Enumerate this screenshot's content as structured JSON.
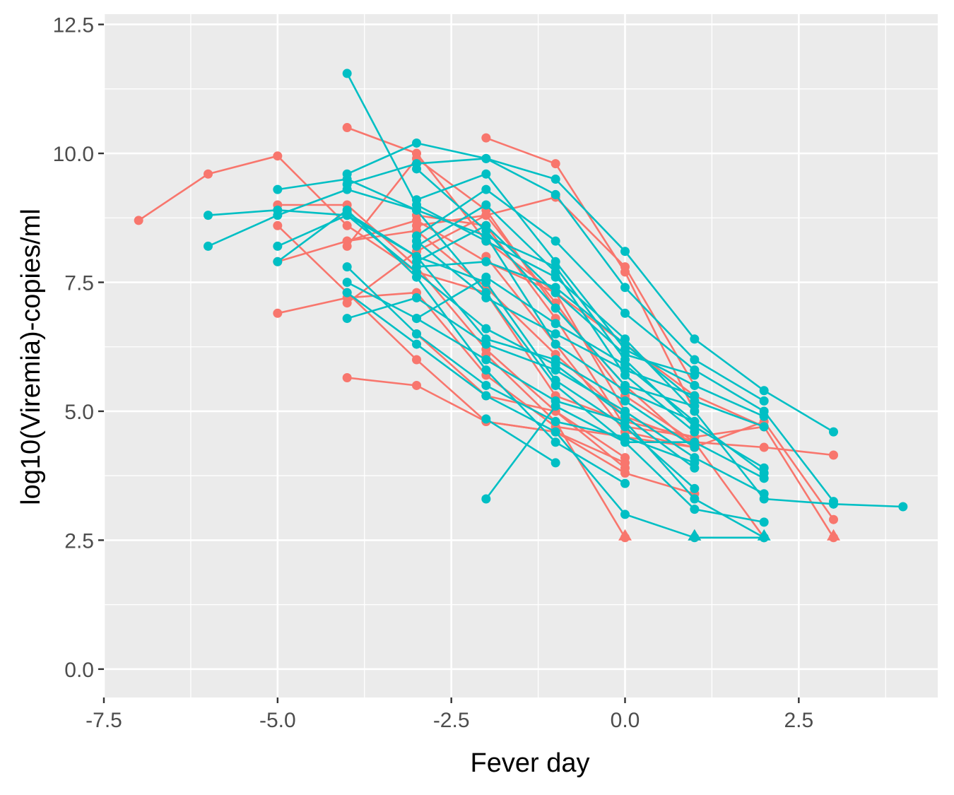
{
  "chart_data": {
    "type": "line",
    "title": "",
    "xlabel": "Fever day",
    "ylabel": "log10(Viremia)-copies/ml",
    "xlim": [
      -7.5,
      4.5
    ],
    "ylim": [
      -0.55,
      12.7
    ],
    "x_ticks": [
      -7.5,
      -5.0,
      -2.5,
      0.0,
      2.5
    ],
    "x_tick_labels": [
      "-7.5",
      "-5.0",
      "-2.5",
      "0.0",
      "2.5"
    ],
    "y_ticks": [
      0.0,
      2.5,
      5.0,
      7.5,
      10.0,
      12.5
    ],
    "y_tick_labels": [
      "0.0",
      "2.5",
      "5.0",
      "7.5",
      "10.0",
      "12.5"
    ],
    "grid": true,
    "legend": "none",
    "colors": {
      "red": "#F8766D",
      "cyan": "#00BFC4"
    },
    "series": [
      {
        "color": "red",
        "points": [
          [
            -7,
            8.7
          ],
          [
            -6,
            9.6
          ],
          [
            -5,
            9.95
          ],
          [
            -4,
            8.6
          ],
          [
            -3,
            7.7
          ],
          [
            -2,
            7.3
          ],
          [
            -1,
            5.3
          ],
          [
            0,
            4.8
          ],
          [
            1,
            4.5
          ]
        ]
      },
      {
        "color": "red",
        "points": [
          [
            -5,
            9.0
          ],
          [
            -4,
            9.0
          ],
          [
            -3,
            7.8
          ],
          [
            -2,
            6.2
          ],
          [
            -1,
            5.0
          ],
          [
            0,
            3.9
          ]
        ]
      },
      {
        "color": "red",
        "points": [
          [
            -5,
            8.6
          ],
          [
            -4,
            7.3
          ],
          [
            -3,
            6.0
          ],
          [
            -2,
            4.8
          ],
          [
            -1,
            4.6
          ],
          [
            0,
            3.8
          ],
          [
            1,
            3.4
          ]
        ]
      },
      {
        "color": "red",
        "points": [
          [
            -5,
            7.9
          ],
          [
            -4,
            8.3
          ],
          [
            -3,
            8.5
          ],
          [
            -2,
            7.4
          ],
          [
            -1,
            6.1
          ],
          [
            0,
            4.9
          ],
          [
            1,
            4.4
          ],
          [
            2,
            4.3
          ],
          [
            3,
            4.15
          ]
        ]
      },
      {
        "color": "red",
        "points": [
          [
            -5,
            6.9
          ],
          [
            -4,
            7.2
          ],
          [
            -3,
            7.3
          ],
          [
            -2,
            5.7
          ],
          [
            -1,
            4.7
          ],
          [
            0,
            4.5
          ],
          [
            1,
            4.3
          ],
          [
            2,
            4.8
          ],
          [
            3,
            2.9
          ]
        ]
      },
      {
        "color": "red",
        "points": [
          [
            -4,
            10.5
          ],
          [
            -3,
            10.0
          ],
          [
            -2,
            8.3
          ],
          [
            -1,
            7.3
          ],
          [
            0,
            6.3
          ],
          [
            1,
            5.3
          ],
          [
            2,
            4.7
          ],
          [
            3,
            2.55
          ]
        ]
      },
      {
        "color": "red",
        "points": [
          [
            -4,
            8.2
          ],
          [
            -3,
            9.9
          ],
          [
            -2,
            8.9
          ],
          [
            -1,
            7.0
          ],
          [
            0,
            5.5
          ],
          [
            1,
            4.3
          ]
        ]
      },
      {
        "color": "red",
        "points": [
          [
            -4,
            7.1
          ],
          [
            -3,
            8.1
          ],
          [
            -2,
            8.8
          ],
          [
            -1,
            7.1
          ],
          [
            0,
            5.3
          ],
          [
            1,
            4.4
          ],
          [
            2,
            2.55
          ]
        ]
      },
      {
        "color": "red",
        "points": [
          [
            -4,
            5.65
          ],
          [
            -3,
            5.5
          ],
          [
            -2,
            4.8
          ],
          [
            -1,
            4.6
          ],
          [
            0,
            4.0
          ]
        ]
      },
      {
        "color": "red",
        "points": [
          [
            -3,
            8.8
          ],
          [
            -2,
            8.6
          ],
          [
            -1,
            6.8
          ],
          [
            0,
            4.7
          ],
          [
            1,
            4.5
          ],
          [
            2,
            4.7
          ]
        ]
      },
      {
        "color": "red",
        "points": [
          [
            -3,
            6.5
          ],
          [
            -2,
            5.3
          ],
          [
            -1,
            5.0
          ],
          [
            0,
            4.1
          ]
        ]
      },
      {
        "color": "red",
        "points": [
          [
            -2,
            10.3
          ],
          [
            -1,
            9.8
          ],
          [
            0,
            7.7
          ],
          [
            1,
            5.0
          ]
        ]
      },
      {
        "color": "red",
        "points": [
          [
            -3,
            8.6
          ],
          [
            -2,
            8.8
          ],
          [
            -1,
            9.15
          ],
          [
            0,
            7.8
          ],
          [
            1,
            5.5
          ]
        ]
      },
      {
        "color": "red",
        "points": [
          [
            -2,
            8.0
          ],
          [
            -1,
            6.3
          ],
          [
            0,
            4.6
          ],
          [
            1,
            4.3
          ]
        ]
      },
      {
        "color": "red",
        "points": [
          [
            -2,
            6.1
          ],
          [
            -1,
            4.8
          ],
          [
            0,
            2.55
          ]
        ]
      },
      {
        "color": "red",
        "points": [
          [
            -4,
            8.3
          ],
          [
            -3,
            8.7
          ],
          [
            -2,
            7.9
          ],
          [
            -1,
            7.3
          ],
          [
            0,
            5.0
          ]
        ]
      },
      {
        "color": "cyan",
        "points": [
          [
            -6,
            8.8
          ],
          [
            -5,
            8.9
          ],
          [
            -4,
            8.8
          ],
          [
            -3,
            8.0
          ],
          [
            -2,
            7.5
          ],
          [
            -1,
            5.6
          ],
          [
            0,
            4.7
          ],
          [
            1,
            3.5
          ]
        ]
      },
      {
        "color": "cyan",
        "points": [
          [
            -6,
            8.2
          ],
          [
            -5,
            8.8
          ],
          [
            -4,
            9.3
          ],
          [
            -3,
            8.9
          ],
          [
            -2,
            8.4
          ],
          [
            -1,
            7.8
          ],
          [
            0,
            6.0
          ],
          [
            1,
            4.7
          ],
          [
            2,
            3.9
          ]
        ]
      },
      {
        "color": "cyan",
        "points": [
          [
            -5,
            9.3
          ],
          [
            -4,
            9.5
          ],
          [
            -3,
            8.9
          ],
          [
            -2,
            7.3
          ],
          [
            -1,
            5.5
          ],
          [
            0,
            4.4
          ],
          [
            1,
            3.1
          ],
          [
            2,
            2.85
          ]
        ]
      },
      {
        "color": "cyan",
        "points": [
          [
            -5,
            8.2
          ],
          [
            -4,
            8.8
          ],
          [
            -3,
            7.7
          ],
          [
            -2,
            6.6
          ],
          [
            -1,
            5.9
          ],
          [
            0,
            4.9
          ],
          [
            1,
            3.9
          ]
        ]
      },
      {
        "color": "cyan",
        "points": [
          [
            -5,
            7.9
          ],
          [
            -4,
            8.9
          ],
          [
            -3,
            7.6
          ],
          [
            -2,
            5.8
          ],
          [
            -1,
            4.4
          ],
          [
            0,
            3.6
          ]
        ]
      },
      {
        "color": "cyan",
        "points": [
          [
            -4,
            11.55
          ],
          [
            -3,
            9.0
          ],
          [
            -2,
            8.3
          ],
          [
            -1,
            7.6
          ],
          [
            0,
            6.4
          ],
          [
            1,
            5.0
          ],
          [
            2,
            3.3
          ],
          [
            3,
            3.2
          ],
          [
            4,
            3.15
          ]
        ]
      },
      {
        "color": "cyan",
        "points": [
          [
            -4,
            9.6
          ],
          [
            -3,
            10.2
          ],
          [
            -2,
            9.9
          ],
          [
            -1,
            9.5
          ],
          [
            0,
            8.1
          ],
          [
            1,
            6.4
          ],
          [
            2,
            5.4
          ],
          [
            3,
            4.6
          ]
        ]
      },
      {
        "color": "cyan",
        "points": [
          [
            -4,
            9.4
          ],
          [
            -3,
            9.8
          ],
          [
            -2,
            9.9
          ],
          [
            -1,
            9.2
          ],
          [
            0,
            7.4
          ],
          [
            1,
            6.0
          ],
          [
            2,
            5.2
          ]
        ]
      },
      {
        "color": "cyan",
        "points": [
          [
            -4,
            7.8
          ],
          [
            -3,
            6.5
          ],
          [
            -2,
            5.5
          ],
          [
            -1,
            4.8
          ],
          [
            0,
            4.5
          ],
          [
            1,
            4.0
          ]
        ]
      },
      {
        "color": "cyan",
        "points": [
          [
            -4,
            7.5
          ],
          [
            -3,
            6.8
          ],
          [
            -2,
            6.0
          ],
          [
            -1,
            5.2
          ],
          [
            0,
            4.8
          ],
          [
            1,
            3.3
          ],
          [
            2,
            2.55
          ]
        ]
      },
      {
        "color": "cyan",
        "points": [
          [
            -4,
            6.8
          ],
          [
            -3,
            7.2
          ],
          [
            -2,
            6.3
          ],
          [
            -1,
            5.8
          ],
          [
            0,
            5.0
          ],
          [
            1,
            4.1
          ],
          [
            2,
            3.4
          ]
        ]
      },
      {
        "color": "cyan",
        "points": [
          [
            -4,
            7.3
          ],
          [
            -3,
            6.3
          ],
          [
            -2,
            5.3
          ],
          [
            -1,
            4.6
          ],
          [
            0,
            3.0
          ],
          [
            1,
            2.55
          ],
          [
            2,
            2.55
          ]
        ]
      },
      {
        "color": "cyan",
        "points": [
          [
            -3,
            8.4
          ],
          [
            -2,
            9.3
          ],
          [
            -1,
            8.3
          ],
          [
            0,
            6.9
          ],
          [
            1,
            5.8
          ],
          [
            2,
            5.0
          ],
          [
            3,
            3.25
          ]
        ]
      },
      {
        "color": "cyan",
        "points": [
          [
            -3,
            9.1
          ],
          [
            -2,
            9.6
          ],
          [
            -1,
            7.9
          ],
          [
            0,
            6.2
          ],
          [
            1,
            5.5
          ],
          [
            2,
            4.9
          ]
        ]
      },
      {
        "color": "cyan",
        "points": [
          [
            -3,
            7.8
          ],
          [
            -2,
            7.9
          ],
          [
            -1,
            7.4
          ],
          [
            0,
            6.3
          ],
          [
            1,
            5.2
          ],
          [
            2,
            4.7
          ]
        ]
      },
      {
        "color": "cyan",
        "points": [
          [
            -3,
            6.8
          ],
          [
            -2,
            7.6
          ],
          [
            -1,
            6.7
          ],
          [
            0,
            5.9
          ],
          [
            1,
            4.8
          ],
          [
            2,
            3.8
          ]
        ]
      },
      {
        "color": "cyan",
        "points": [
          [
            -2,
            3.3
          ],
          [
            -1,
            5.1
          ],
          [
            0,
            4.4
          ],
          [
            1,
            4.4
          ],
          [
            2,
            3.7
          ]
        ]
      },
      {
        "color": "cyan",
        "points": [
          [
            -2,
            4.85
          ],
          [
            -1,
            4.0
          ]
        ]
      },
      {
        "color": "cyan",
        "points": [
          [
            -3,
            8.2
          ],
          [
            -2,
            9.0
          ],
          [
            -1,
            7.7
          ],
          [
            0,
            5.7
          ],
          [
            1,
            4.6
          ]
        ]
      },
      {
        "color": "cyan",
        "points": [
          [
            -4,
            8.85
          ],
          [
            -3,
            8.0
          ],
          [
            -2,
            6.4
          ],
          [
            -1,
            6.0
          ],
          [
            0,
            5.2
          ],
          [
            1,
            4.3
          ]
        ]
      },
      {
        "color": "cyan",
        "points": [
          [
            -3,
            9.7
          ],
          [
            -2,
            8.5
          ],
          [
            -1,
            7.0
          ],
          [
            0,
            5.5
          ],
          [
            1,
            5.1
          ]
        ]
      },
      {
        "color": "cyan",
        "points": [
          [
            -3,
            8.3
          ],
          [
            -2,
            7.2
          ],
          [
            -1,
            6.5
          ],
          [
            0,
            5.8
          ],
          [
            1,
            5.3
          ]
        ]
      },
      {
        "color": "cyan",
        "points": [
          [
            -2,
            8.4
          ],
          [
            -1,
            6.3
          ],
          [
            0,
            5.4
          ],
          [
            1,
            4.8
          ]
        ]
      },
      {
        "color": "cyan",
        "points": [
          [
            -3,
            7.9
          ],
          [
            -2,
            8.6
          ],
          [
            -1,
            7.3
          ],
          [
            0,
            6.1
          ],
          [
            1,
            5.7
          ]
        ]
      }
    ],
    "triangles": [
      {
        "color": "red",
        "x": 0,
        "y": 2.55
      },
      {
        "color": "red",
        "x": 1,
        "y": 2.55
      },
      {
        "color": "red",
        "x": 3,
        "y": 2.55
      },
      {
        "color": "cyan",
        "x": 1,
        "y": 2.55
      },
      {
        "color": "cyan",
        "x": 2,
        "y": 2.55
      }
    ]
  }
}
